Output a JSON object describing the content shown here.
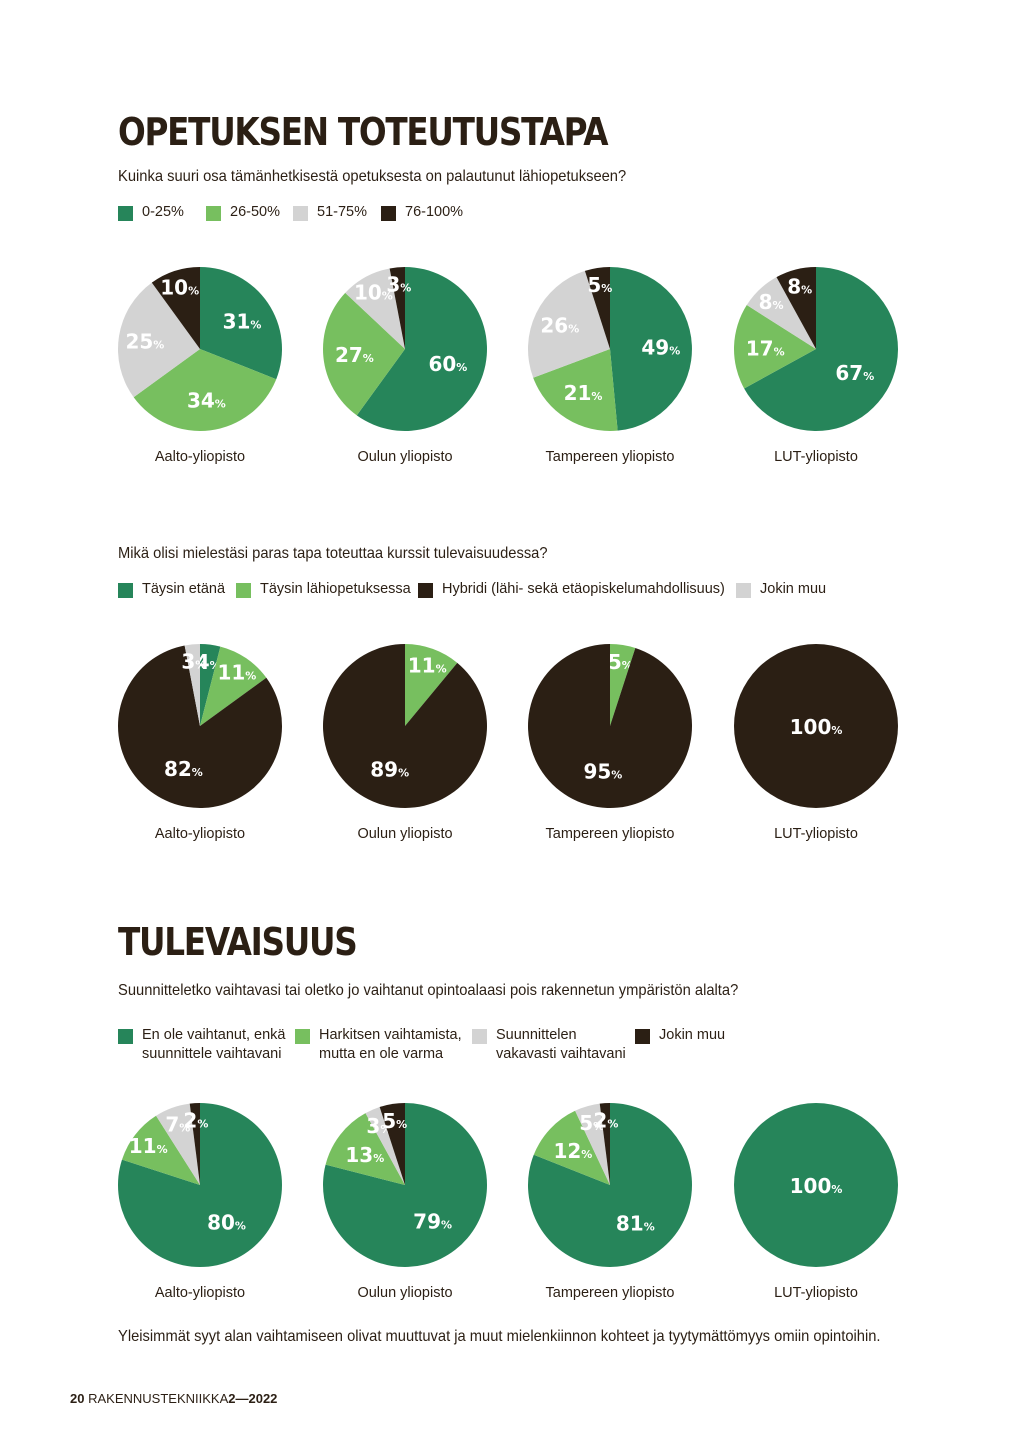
{
  "sections": {
    "opetus": {
      "title": "OPETUKSEN TOTEUTUSTAPA"
    },
    "tulevaisuus": {
      "title": "TULEVAISUUS"
    }
  },
  "chart_data": [
    {
      "type": "pie",
      "title": "Kuinka suuri osa tämänhetkisestä opetuksesta on palautunut lähiopetukseen?",
      "legend": [
        {
          "label": "0-25%",
          "color": "#26855a"
        },
        {
          "label": "26-50%",
          "color": "#77bf5f"
        },
        {
          "label": "51-75%",
          "color": "#d3d3d3"
        },
        {
          "label": "76-100%",
          "color": "#2b1f14"
        }
      ],
      "pies": [
        {
          "name": "Aalto-yliopisto",
          "values": [
            31,
            34,
            25,
            10
          ]
        },
        {
          "name": "Oulun yliopisto",
          "values": [
            60,
            27,
            10,
            3
          ]
        },
        {
          "name": "Tampereen yliopisto",
          "values": [
            49,
            21,
            26,
            5
          ]
        },
        {
          "name": "LUT-yliopisto",
          "values": [
            67,
            17,
            8,
            8
          ]
        }
      ],
      "unit": "%"
    },
    {
      "type": "pie",
      "title": "Mikä olisi mielestäsi paras tapa toteuttaa kurssit tulevaisuudessa?",
      "legend": [
        {
          "label": "Täysin etänä",
          "color": "#26855a"
        },
        {
          "label": "Täysin lähiopetuksessa",
          "color": "#77bf5f"
        },
        {
          "label": "Hybridi (lähi- sekä etäopiskelumahdollisuus)",
          "color": "#2b1f14"
        },
        {
          "label": "Jokin muu",
          "color": "#d3d3d3"
        }
      ],
      "pies": [
        {
          "name": "Aalto-yliopisto",
          "values": [
            4,
            11,
            82,
            3
          ]
        },
        {
          "name": "Oulun yliopisto",
          "values": [
            0,
            11,
            89,
            0
          ]
        },
        {
          "name": "Tampereen yliopisto",
          "values": [
            0,
            5,
            95,
            0
          ]
        },
        {
          "name": "LUT-yliopisto",
          "values": [
            0,
            0,
            100,
            0
          ]
        }
      ],
      "unit": "%"
    },
    {
      "type": "pie",
      "title": "Suunnitteletko vaihtavasi tai oletko jo vaihtanut opintoalaasi pois rakennetun ympäristön alalta?",
      "legend": [
        {
          "label": "En ole vaihtanut, enkä\nsuunnittele vaihtavani",
          "color": "#26855a"
        },
        {
          "label": "Harkitsen vaihtamista,\nmutta en ole varma",
          "color": "#77bf5f"
        },
        {
          "label": "Suunnittelen\nvakavasti vaihtavani",
          "color": "#d3d3d3"
        },
        {
          "label": "Jokin muu",
          "color": "#2b1f14"
        }
      ],
      "pies": [
        {
          "name": "Aalto-yliopisto",
          "values": [
            80,
            11,
            7,
            2
          ]
        },
        {
          "name": "Oulun yliopisto",
          "values": [
            79,
            13,
            3,
            5
          ]
        },
        {
          "name": "Tampereen yliopisto",
          "values": [
            81,
            12,
            5,
            2
          ]
        },
        {
          "name": "LUT-yliopisto",
          "values": [
            100,
            0,
            0,
            0
          ]
        }
      ],
      "unit": "%"
    }
  ],
  "footnote": "Yleisimmät syyt alan vaihtamiseen olivat muuttuvat ja muut mielenkiinnon kohteet ja tyytymättömyys omiin opintoihin.",
  "page_footer": {
    "page_number": "20",
    "magazine": "RAKENNUSTEKNIIKKA",
    "issue": "2—2022"
  }
}
